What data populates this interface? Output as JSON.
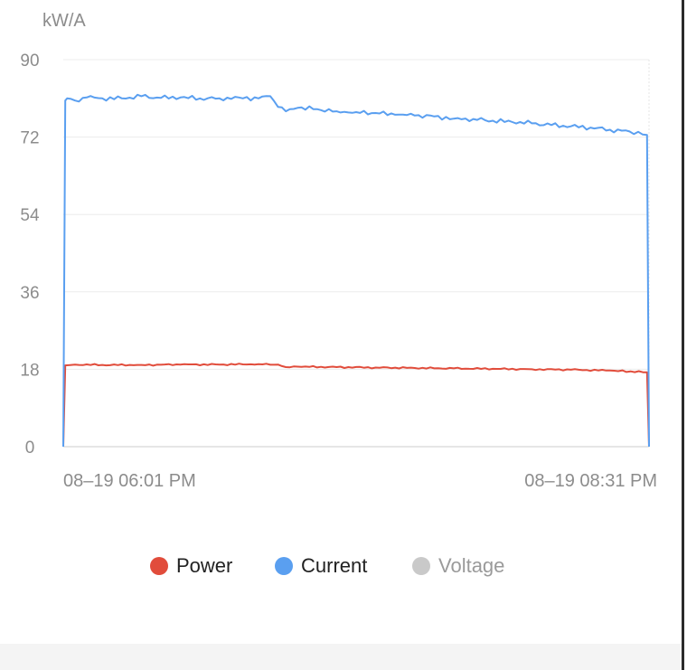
{
  "chart_data": {
    "type": "line",
    "unit_label": "kW/A",
    "ylim": [
      0,
      90
    ],
    "y_ticks": [
      "90",
      "72",
      "54",
      "36",
      "18",
      "0"
    ],
    "y_tick_values": [
      90,
      72,
      54,
      36,
      18,
      0
    ],
    "x_start_label": "08–19 06:01 PM",
    "x_end_label": "08–19 08:31 PM",
    "x_range_minutes": [
      0,
      150
    ],
    "grid": true,
    "legend_position": "bottom",
    "series": [
      {
        "name": "Power",
        "color": "#e14c3b",
        "visible": true,
        "points": [
          [
            0,
            0
          ],
          [
            0.5,
            18.9
          ],
          [
            3,
            19.1
          ],
          [
            10,
            19.0
          ],
          [
            20,
            19.0
          ],
          [
            30,
            19.1
          ],
          [
            40,
            19.1
          ],
          [
            50,
            19.2
          ],
          [
            55,
            19.1
          ],
          [
            57,
            18.5
          ],
          [
            60,
            18.6
          ],
          [
            70,
            18.5
          ],
          [
            80,
            18.4
          ],
          [
            90,
            18.3
          ],
          [
            100,
            18.2
          ],
          [
            110,
            18.1
          ],
          [
            120,
            18.0
          ],
          [
            130,
            17.9
          ],
          [
            140,
            17.7
          ],
          [
            149.5,
            17.3
          ],
          [
            150,
            0
          ]
        ]
      },
      {
        "name": "Current",
        "color": "#5a9ff0",
        "visible": true,
        "points": [
          [
            0,
            0
          ],
          [
            0.5,
            80.5
          ],
          [
            1,
            81.0
          ],
          [
            3,
            80.5
          ],
          [
            6,
            81.2
          ],
          [
            10,
            81.0
          ],
          [
            15,
            81.0
          ],
          [
            20,
            81.5
          ],
          [
            25,
            81.1
          ],
          [
            30,
            81.2
          ],
          [
            35,
            81.0
          ],
          [
            40,
            81.0
          ],
          [
            45,
            81.2
          ],
          [
            50,
            81.0
          ],
          [
            53,
            81.5
          ],
          [
            55,
            79.0
          ],
          [
            57,
            78.0
          ],
          [
            60,
            78.8
          ],
          [
            65,
            78.5
          ],
          [
            70,
            78.0
          ],
          [
            75,
            77.8
          ],
          [
            80,
            77.6
          ],
          [
            85,
            77.2
          ],
          [
            90,
            77.0
          ],
          [
            95,
            76.8
          ],
          [
            100,
            76.3
          ],
          [
            105,
            76.2
          ],
          [
            110,
            75.8
          ],
          [
            115,
            75.5
          ],
          [
            120,
            75.2
          ],
          [
            125,
            74.8
          ],
          [
            130,
            74.5
          ],
          [
            135,
            74.2
          ],
          [
            140,
            73.7
          ],
          [
            145,
            73.3
          ],
          [
            149.5,
            72.5
          ],
          [
            150,
            0
          ]
        ]
      },
      {
        "name": "Voltage",
        "color": "#c9c9c9",
        "visible": false,
        "points": []
      }
    ]
  },
  "legend": {
    "items": [
      {
        "label": "Power",
        "color": "#e14c3b",
        "active": true
      },
      {
        "label": "Current",
        "color": "#5a9ff0",
        "active": true
      },
      {
        "label": "Voltage",
        "color": "#c9c9c9",
        "active": false
      }
    ]
  },
  "colors": {
    "axis_text": "#8c8c8c",
    "active_legend_text": "#222222",
    "inactive_legend_text": "#9a9a9a",
    "grid": "#ececec",
    "axis_line": "#cccccc",
    "bottom_strip": "#f4f4f4"
  }
}
